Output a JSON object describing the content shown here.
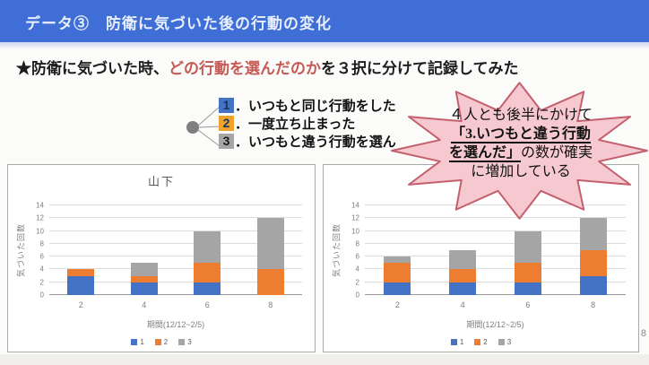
{
  "slide": {
    "title": "データ③　防衛に気づいた後の行動の変化",
    "page_number": "8"
  },
  "subtitle": {
    "prefix": "★防衛に気づいた時、",
    "highlight": "どの行動を選んだのか",
    "suffix": "を３択に分けて記録してみた"
  },
  "choices": {
    "items": [
      {
        "num": "1",
        "label": "．いつもと同じ行動をした",
        "chip_bg": "#4472C4",
        "chip_fg": "#17375e"
      },
      {
        "num": "2",
        "label": "．一度立ち止まった",
        "chip_bg": "#f0a22e",
        "chip_fg": "#17375e"
      },
      {
        "num": "3",
        "label": "．いつもと違う行動を選ん",
        "chip_bg": "#a6a6a6",
        "chip_fg": "#1a1a1a"
      }
    ]
  },
  "callout": {
    "line1": "４人とも後半にかけて",
    "line2_underlined": "「3.いつもと違う行動",
    "line3_underlined": "を選んだ」",
    "line3_rest": "の数が確実",
    "line4": "に増加している"
  },
  "colors": {
    "header_bg": "#3f6fd6",
    "subtitle_red": "#c55a55",
    "burst_fill": "#f5c9cf",
    "burst_border": "#c4606e",
    "series_blue": "#4472C4",
    "series_orange": "#ED7D31",
    "series_gray": "#A5A5A5"
  },
  "chart_data": [
    {
      "type": "bar",
      "stacked": true,
      "title": "山下",
      "categories": [
        "2",
        "4",
        "6",
        "8"
      ],
      "series": [
        {
          "name": "1",
          "color": "#4472C4",
          "values": [
            3,
            2,
            2,
            0
          ]
        },
        {
          "name": "2",
          "color": "#ED7D31",
          "values": [
            1,
            1,
            3,
            4
          ]
        },
        {
          "name": "3",
          "color": "#A5A5A5",
          "values": [
            0,
            2,
            5,
            8
          ]
        }
      ],
      "xlabel": "期間(12/12~2/5)",
      "ylabel": "気づいた回数",
      "ylim": [
        0,
        14
      ],
      "ytick_step": 2,
      "grid": true,
      "legend_position": "bottom"
    },
    {
      "type": "bar",
      "stacked": true,
      "title": "",
      "categories": [
        "2",
        "4",
        "6",
        "8"
      ],
      "series": [
        {
          "name": "1",
          "color": "#4472C4",
          "values": [
            2,
            2,
            2,
            3
          ]
        },
        {
          "name": "2",
          "color": "#ED7D31",
          "values": [
            3,
            2,
            3,
            4
          ]
        },
        {
          "name": "3",
          "color": "#A5A5A5",
          "values": [
            1,
            3,
            5,
            5
          ]
        }
      ],
      "xlabel": "期間(12/12~2/5)",
      "ylabel": "気づいた回数",
      "ylim": [
        0,
        14
      ],
      "ytick_step": 2,
      "grid": true,
      "legend_position": "bottom"
    }
  ]
}
